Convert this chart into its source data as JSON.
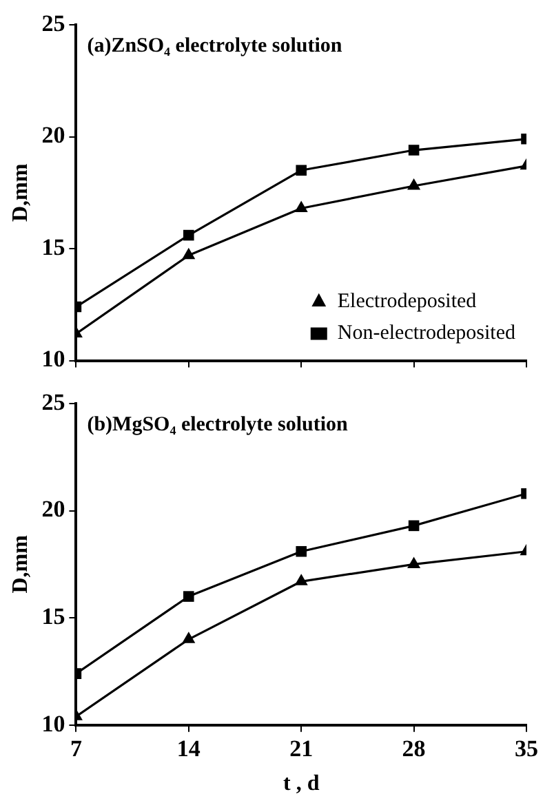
{
  "chart_data": [
    {
      "type": "line",
      "title": "(a)ZnSO₄ electrolyte solution",
      "ylabel": "D,mm",
      "x": [
        7,
        14,
        21,
        28,
        35
      ],
      "xlim": [
        7,
        35
      ],
      "xticks": [
        7,
        14,
        21,
        28,
        35
      ],
      "ylim": [
        10,
        25
      ],
      "yticks": [
        10,
        15,
        20,
        25
      ],
      "tick_labels": "y",
      "grid": false,
      "legend": "bottom right",
      "line_style": "solid",
      "series": [
        {
          "name": "Electrodeposited",
          "color": "#000000",
          "marker": "triangle",
          "values": [
            11.2,
            14.7,
            16.8,
            17.8,
            18.7
          ]
        },
        {
          "name": "Non-electrodeposited",
          "color": "#000000",
          "marker": "square",
          "values": [
            12.4,
            15.6,
            18.5,
            19.4,
            19.9
          ]
        }
      ]
    },
    {
      "type": "line",
      "title": "(b)MgSO₄ electrolyte solution",
      "ylabel": "D,mm",
      "xlabel": "t , d",
      "x": [
        7,
        14,
        21,
        28,
        35
      ],
      "xlim": [
        7,
        35
      ],
      "xticks": [
        7,
        14,
        21,
        28,
        35
      ],
      "ylim": [
        10,
        25
      ],
      "yticks": [
        10,
        15,
        20,
        25
      ],
      "grid": false,
      "legend": false,
      "line_style": "solid",
      "series": [
        {
          "color": "#000000",
          "marker": "triangle",
          "values": [
            10.4,
            14.0,
            16.7,
            17.5,
            18.1
          ]
        },
        {
          "color": "#000000",
          "marker": "square",
          "values": [
            12.4,
            16.0,
            18.1,
            19.3,
            20.8
          ]
        }
      ]
    }
  ]
}
